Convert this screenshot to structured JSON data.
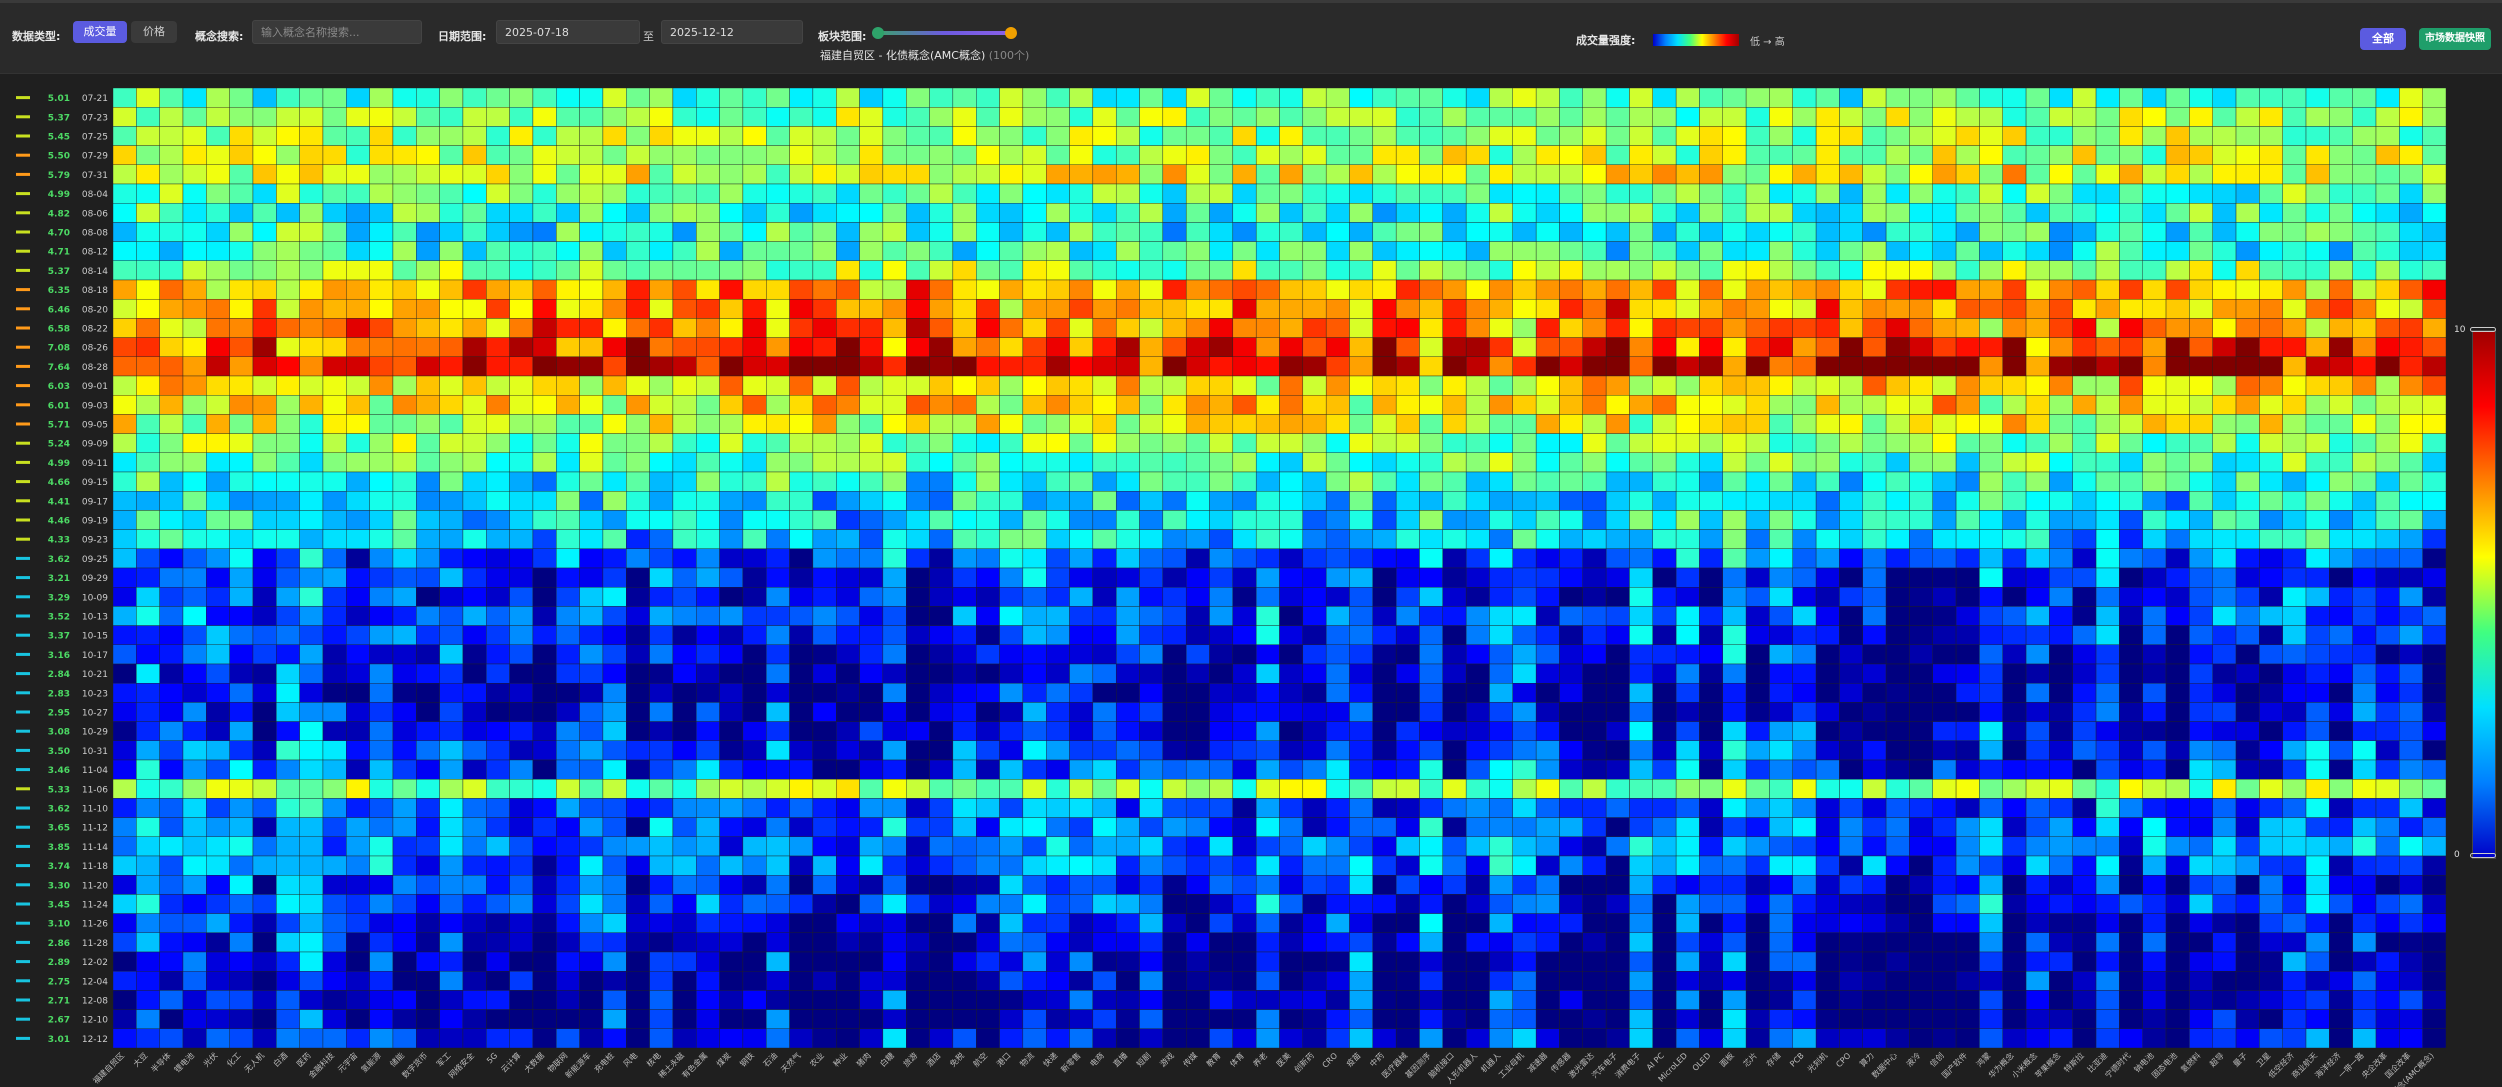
{
  "toolbar": {
    "data_type_label": "数据类型:",
    "btn_volume": "成交量",
    "btn_price": "价格",
    "search_label": "概念搜索:",
    "search_placeholder": "输入概念名称搜索...",
    "date_range_label": "日期范围:",
    "date_start": "2025-07-18",
    "date_sep": "至",
    "date_end": "2025-12-12",
    "sector_range_label": "板块范围:",
    "range_info": "福建自贸区 - 化债概念(AMC概念)",
    "range_count": "(100个)",
    "intensity_label": "成交量强度:",
    "intensity_legend": "低 → 高",
    "btn_all": "全部",
    "btn_snapshot": "市场数据快照"
  },
  "colors": {
    "active_button": "#5b5be0",
    "snapshot_button": "#1f9e6a",
    "row_bar_green": "#4cd964",
    "row_bar_cyan": "#18c4e0"
  },
  "scale": {
    "max_label": "10",
    "min_label": "0"
  },
  "chart_data": {
    "type": "heatmap",
    "dates": [
      "07-21",
      "07-23",
      "07-25",
      "07-29",
      "07-31",
      "08-04",
      "08-06",
      "08-08",
      "08-12",
      "08-14",
      "08-18",
      "08-20",
      "08-22",
      "08-26",
      "08-28",
      "09-01",
      "09-03",
      "09-05",
      "09-09",
      "09-11",
      "09-15",
      "09-17",
      "09-19",
      "09-23",
      "09-25",
      "09-29",
      "10-09",
      "10-13",
      "10-15",
      "10-17",
      "10-21",
      "10-23",
      "10-27",
      "10-29",
      "10-31",
      "11-04",
      "11-06",
      "11-10",
      "11-12",
      "11-14",
      "11-18",
      "11-20",
      "11-24",
      "11-26",
      "11-28",
      "12-02",
      "12-04",
      "12-08",
      "12-10",
      "12-12"
    ],
    "row_values": [
      5.01,
      5.37,
      5.45,
      5.5,
      5.79,
      4.99,
      4.82,
      4.7,
      4.71,
      5.37,
      6.35,
      6.46,
      6.58,
      7.08,
      7.64,
      6.03,
      6.01,
      5.71,
      5.24,
      4.99,
      4.66,
      4.41,
      4.46,
      4.33,
      3.62,
      3.21,
      3.29,
      3.52,
      3.37,
      3.16,
      2.84,
      2.83,
      2.95,
      3.08,
      3.5,
      3.46,
      5.33,
      3.62,
      3.65,
      3.85,
      3.74,
      3.3,
      3.45,
      3.1,
      2.86,
      2.89,
      2.75,
      2.71,
      2.67,
      3.01
    ],
    "columns": [
      "福建自贸区",
      "大豆",
      "半导体",
      "锂电池",
      "光伏",
      "化工",
      "无人机",
      "白酒",
      "医药",
      "金融科技",
      "元宇宙",
      "氢能源",
      "储能",
      "数字货币",
      "军工",
      "网络安全",
      "5G",
      "云计算",
      "大数据",
      "物联网",
      "新能源车",
      "充电桩",
      "风电",
      "核电",
      "稀土永磁",
      "有色金属",
      "煤炭",
      "钢铁",
      "石油",
      "天然气",
      "农业",
      "种业",
      "猪肉",
      "白糖",
      "旅游",
      "酒店",
      "免税",
      "航空",
      "港口",
      "物流",
      "快递",
      "新零售",
      "电商",
      "直播",
      "短剧",
      "游戏",
      "传媒",
      "教育",
      "体育",
      "养老",
      "医美",
      "创新药",
      "CRO",
      "疫苗",
      "中药",
      "医疗器械",
      "基因测序",
      "脑机接口",
      "人形机器人",
      "机器人",
      "工业母机",
      "减速器",
      "传感器",
      "激光雷达",
      "汽车电子",
      "消费电子",
      "AI PC",
      "MicroLED",
      "OLED",
      "面板",
      "芯片",
      "存储",
      "PCB",
      "光刻机",
      "CPO",
      "算力",
      "数据中心",
      "液冷",
      "信创",
      "国产软件",
      "鸿蒙",
      "华为概念",
      "小米概念",
      "苹果概念",
      "特斯拉",
      "比亚迪",
      "宁德时代",
      "钠电池",
      "固态电池",
      "氢燃料",
      "超导",
      "量子",
      "卫星",
      "低空经济",
      "商业航天",
      "海洋经济",
      "一带一路",
      "央企改革",
      "国企改革",
      "化债概念(AMC概念)"
    ],
    "value_range": [
      0,
      10
    ],
    "colorscale": "jet",
    "title": ""
  }
}
